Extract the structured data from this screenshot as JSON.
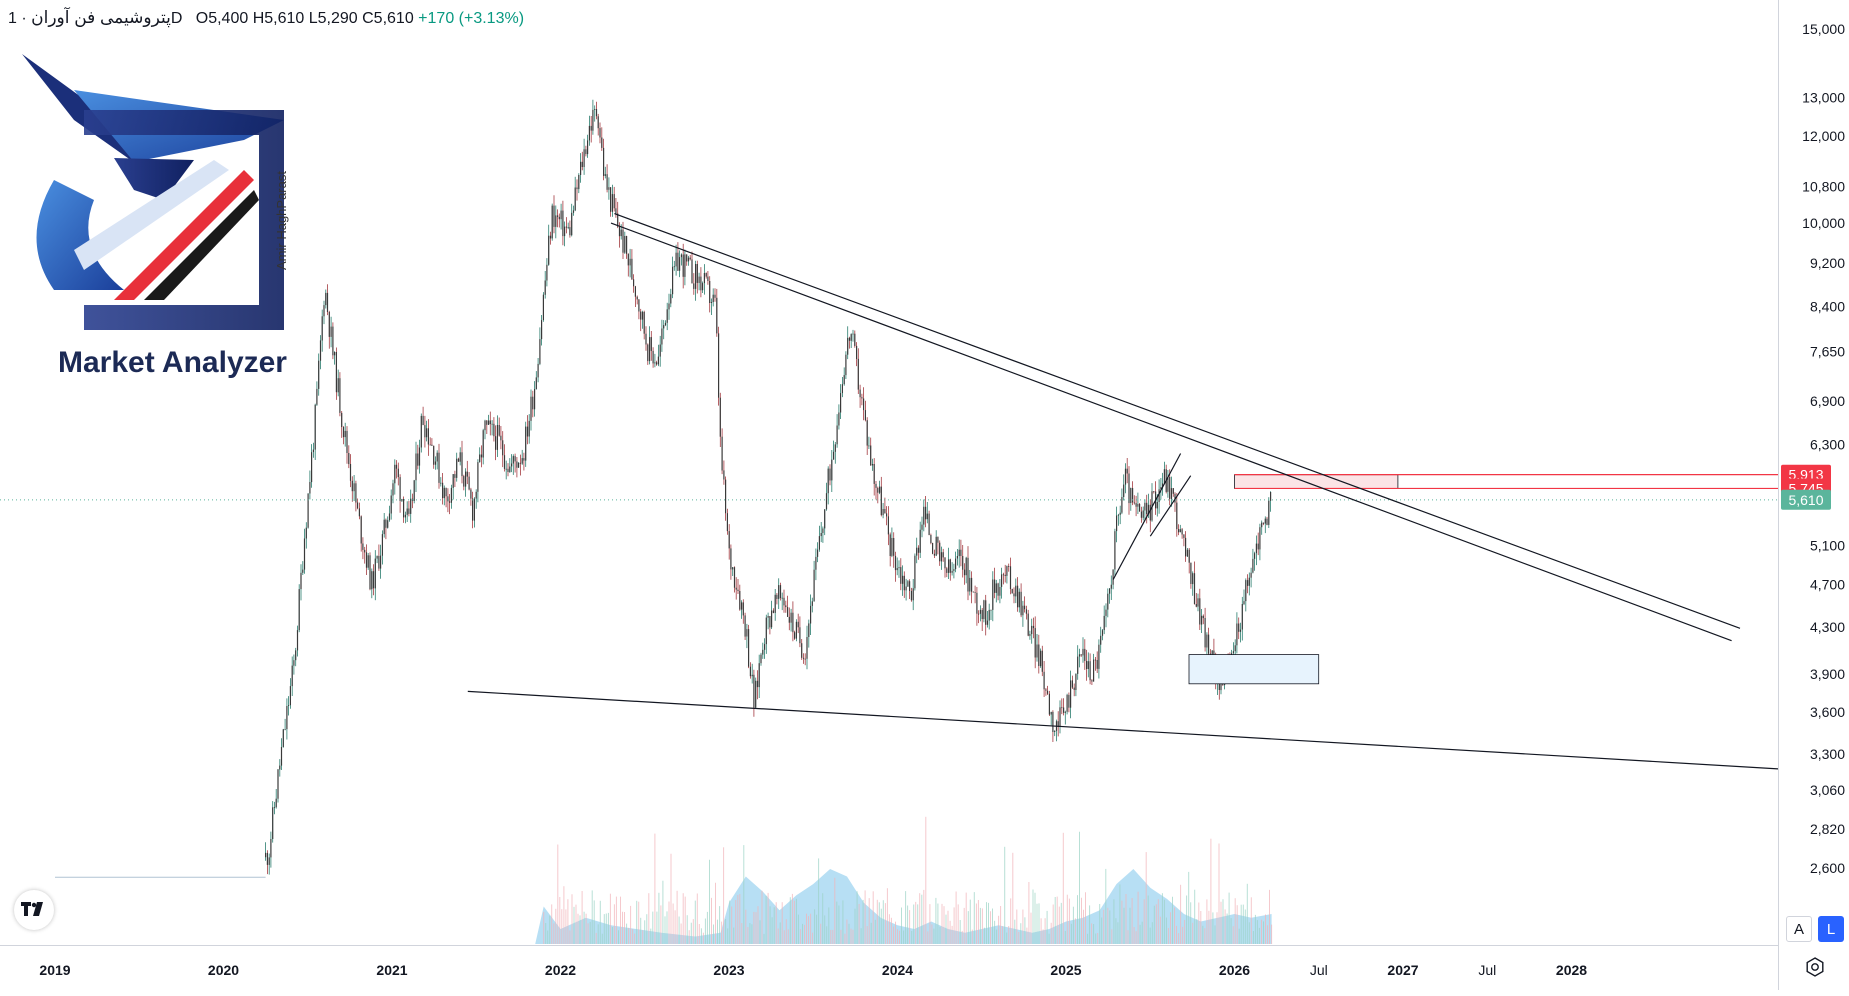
{
  "legend": {
    "symbol": "پتروشیمی فن آوران",
    "timeframe": "1D",
    "open": "O5,400",
    "high": "H5,610",
    "low": "L5,290",
    "close": "C5,610",
    "change": "+170 (+3.13%)"
  },
  "watermark": {
    "brand": "Market Analyzer",
    "author": "Amir HaghParast"
  },
  "colors": {
    "up": "#089981",
    "down": "#f23645",
    "candle": "#3a3a3a",
    "volume": "#9fd4f0",
    "current_price_label": "#5bb59c",
    "resistance_label": "#f23645",
    "resistance_box": "#fbe4e6",
    "support_box": "#e7f3fd"
  },
  "buttons": {
    "auto": "A",
    "log": "L"
  },
  "chart_data": {
    "type": "candlestick",
    "symbol": "پتروشیمی فن آوران",
    "interval": "1D",
    "scale": "log",
    "y_ticks": [
      "15,000",
      "13,000",
      "12,000",
      "10,800",
      "10,000",
      "9,200",
      "8,400",
      "7,650",
      "6,900",
      "6,300",
      "5,100",
      "4,700",
      "4,300",
      "3,900",
      "3,600",
      "3,300",
      "3,060",
      "2,820",
      "2,600"
    ],
    "y_tick_values": [
      15000,
      13000,
      12000,
      10800,
      10000,
      9200,
      8400,
      7650,
      6900,
      6300,
      5100,
      4700,
      4300,
      3900,
      3600,
      3300,
      3060,
      2820,
      2600
    ],
    "x_ticks": [
      "2019",
      "2020",
      "2021",
      "2022",
      "2023",
      "2024",
      "2025",
      "2026",
      "Jul",
      "2027",
      "Jul",
      "2028"
    ],
    "x_tick_values": [
      2019.0,
      2020.0,
      2021.0,
      2022.0,
      2023.0,
      2024.0,
      2025.0,
      2026.0,
      2026.5,
      2027.0,
      2027.5,
      2028.0
    ],
    "price_labels": [
      {
        "label": "5,913",
        "value": 5913,
        "kind": "resistance-top"
      },
      {
        "label": "5,745",
        "value": 5745,
        "kind": "resistance-bottom"
      },
      {
        "label": "5,610",
        "value": 5610,
        "kind": "last-price"
      }
    ],
    "price_path": [
      [
        2019.0,
        2550
      ],
      [
        2020.0,
        2550
      ],
      [
        2020.2,
        2560
      ],
      [
        2020.27,
        2700
      ],
      [
        2020.33,
        3200
      ],
      [
        2020.42,
        4000
      ],
      [
        2020.48,
        5200
      ],
      [
        2020.55,
        6800
      ],
      [
        2020.6,
        8800
      ],
      [
        2020.65,
        7600
      ],
      [
        2020.72,
        6400
      ],
      [
        2020.8,
        5400
      ],
      [
        2020.88,
        4700
      ],
      [
        2020.95,
        5200
      ],
      [
        2021.02,
        6000
      ],
      [
        2021.1,
        5300
      ],
      [
        2021.18,
        6700
      ],
      [
        2021.25,
        6200
      ],
      [
        2021.32,
        5600
      ],
      [
        2021.4,
        6100
      ],
      [
        2021.48,
        5500
      ],
      [
        2021.55,
        6500
      ],
      [
        2021.62,
        6400
      ],
      [
        2021.7,
        6000
      ],
      [
        2021.78,
        6200
      ],
      [
        2021.85,
        7200
      ],
      [
        2021.9,
        8600
      ],
      [
        2021.95,
        10200
      ],
      [
        2022.05,
        9800
      ],
      [
        2022.12,
        11200
      ],
      [
        2022.17,
        12200
      ],
      [
        2022.22,
        12700
      ],
      [
        2022.26,
        11000
      ],
      [
        2022.32,
        10200
      ],
      [
        2022.38,
        9500
      ],
      [
        2022.45,
        8700
      ],
      [
        2022.52,
        7700
      ],
      [
        2022.58,
        7500
      ],
      [
        2022.64,
        8600
      ],
      [
        2022.7,
        9300
      ],
      [
        2022.78,
        9000
      ],
      [
        2022.85,
        8800
      ],
      [
        2022.92,
        8400
      ],
      [
        2022.95,
        6200
      ],
      [
        2023.0,
        5000
      ],
      [
        2023.05,
        4700
      ],
      [
        2023.1,
        4300
      ],
      [
        2023.15,
        3650
      ],
      [
        2023.2,
        4200
      ],
      [
        2023.26,
        4500
      ],
      [
        2023.32,
        4600
      ],
      [
        2023.38,
        4300
      ],
      [
        2023.45,
        4100
      ],
      [
        2023.5,
        4700
      ],
      [
        2023.56,
        5400
      ],
      [
        2023.62,
        6300
      ],
      [
        2023.68,
        7400
      ],
      [
        2023.72,
        8000
      ],
      [
        2023.78,
        7000
      ],
      [
        2023.85,
        6000
      ],
      [
        2023.9,
        5600
      ],
      [
        2023.96,
        5100
      ],
      [
        2024.02,
        4800
      ],
      [
        2024.08,
        4600
      ],
      [
        2024.15,
        5500
      ],
      [
        2024.2,
        5200
      ],
      [
        2024.26,
        4900
      ],
      [
        2024.32,
        4800
      ],
      [
        2024.38,
        5000
      ],
      [
        2024.45,
        4600
      ],
      [
        2024.52,
        4400
      ],
      [
        2024.58,
        4700
      ],
      [
        2024.65,
        4800
      ],
      [
        2024.72,
        4600
      ],
      [
        2024.78,
        4300
      ],
      [
        2024.83,
        4100
      ],
      [
        2024.88,
        3800
      ],
      [
        2024.93,
        3500
      ],
      [
        2024.98,
        3550
      ],
      [
        2025.04,
        3850
      ],
      [
        2025.1,
        4100
      ],
      [
        2025.14,
        3900
      ],
      [
        2025.18,
        4000
      ],
      [
        2025.24,
        4400
      ],
      [
        2025.3,
        5300
      ],
      [
        2025.35,
        5900
      ],
      [
        2025.4,
        5500
      ],
      [
        2025.46,
        5400
      ],
      [
        2025.52,
        5600
      ],
      [
        2025.58,
        5900
      ],
      [
        2025.63,
        5700
      ],
      [
        2025.68,
        5200
      ],
      [
        2025.74,
        4800
      ],
      [
        2025.8,
        4400
      ],
      [
        2025.86,
        4000
      ],
      [
        2025.92,
        3850
      ],
      [
        2025.97,
        3950
      ],
      [
        2026.02,
        4300
      ],
      [
        2026.08,
        4700
      ],
      [
        2026.13,
        5100
      ],
      [
        2026.18,
        5400
      ],
      [
        2026.22,
        5610
      ]
    ],
    "volume_profile": [
      [
        2019.0,
        0
      ],
      [
        2021.85,
        0
      ],
      [
        2021.9,
        0.5
      ],
      [
        2022.0,
        0.2
      ],
      [
        2022.15,
        0.35
      ],
      [
        2022.3,
        0.25
      ],
      [
        2022.45,
        0.2
      ],
      [
        2022.6,
        0.15
      ],
      [
        2022.8,
        0.1
      ],
      [
        2022.95,
        0.15
      ],
      [
        2023.0,
        0.55
      ],
      [
        2023.1,
        0.9
      ],
      [
        2023.2,
        0.7
      ],
      [
        2023.3,
        0.45
      ],
      [
        2023.4,
        0.65
      ],
      [
        2023.5,
        0.8
      ],
      [
        2023.6,
        1.0
      ],
      [
        2023.7,
        0.9
      ],
      [
        2023.8,
        0.55
      ],
      [
        2023.9,
        0.35
      ],
      [
        2024.0,
        0.25
      ],
      [
        2024.1,
        0.2
      ],
      [
        2024.2,
        0.3
      ],
      [
        2024.3,
        0.2
      ],
      [
        2024.4,
        0.15
      ],
      [
        2024.5,
        0.2
      ],
      [
        2024.6,
        0.25
      ],
      [
        2024.7,
        0.2
      ],
      [
        2024.8,
        0.15
      ],
      [
        2024.9,
        0.2
      ],
      [
        2025.0,
        0.3
      ],
      [
        2025.1,
        0.35
      ],
      [
        2025.2,
        0.45
      ],
      [
        2025.3,
        0.8
      ],
      [
        2025.4,
        1.0
      ],
      [
        2025.5,
        0.75
      ],
      [
        2025.6,
        0.6
      ],
      [
        2025.7,
        0.4
      ],
      [
        2025.8,
        0.3
      ],
      [
        2025.9,
        0.35
      ],
      [
        2026.0,
        0.4
      ],
      [
        2026.1,
        0.35
      ],
      [
        2026.22,
        0.4
      ],
      [
        2026.22,
        0
      ]
    ],
    "trendlines": [
      {
        "name": "upper-resistance-1",
        "from": [
          2022.32,
          10200
        ],
        "to": [
          2029.0,
          4290
        ]
      },
      {
        "name": "upper-resistance-2",
        "from": [
          2022.3,
          10000
        ],
        "to": [
          2028.95,
          4180
        ]
      },
      {
        "name": "lower-support",
        "from": [
          2021.45,
          3760
        ],
        "to": [
          2031.2,
          3070
        ]
      },
      {
        "name": "rising-channel",
        "from": [
          2025.28,
          4750
        ],
        "to": [
          2025.68,
          6180
        ]
      },
      {
        "name": "rising-channel-2",
        "from": [
          2025.5,
          5200
        ],
        "to": [
          2025.74,
          5900
        ]
      }
    ],
    "zones": [
      {
        "name": "resistance-zone",
        "x": [
          2026.0,
          2026.97
        ],
        "y": [
          5745,
          5913
        ]
      },
      {
        "name": "support-zone",
        "x": [
          2025.73,
          2026.5
        ],
        "y": [
          3820,
          4060
        ]
      }
    ],
    "horizontal_lines": [
      {
        "name": "resistance-top-line",
        "value": 5913
      },
      {
        "name": "resistance-bottom-line",
        "value": 5745
      },
      {
        "name": "last-price-line",
        "value": 5610
      }
    ],
    "grid": false,
    "legend_position": "top-left"
  }
}
